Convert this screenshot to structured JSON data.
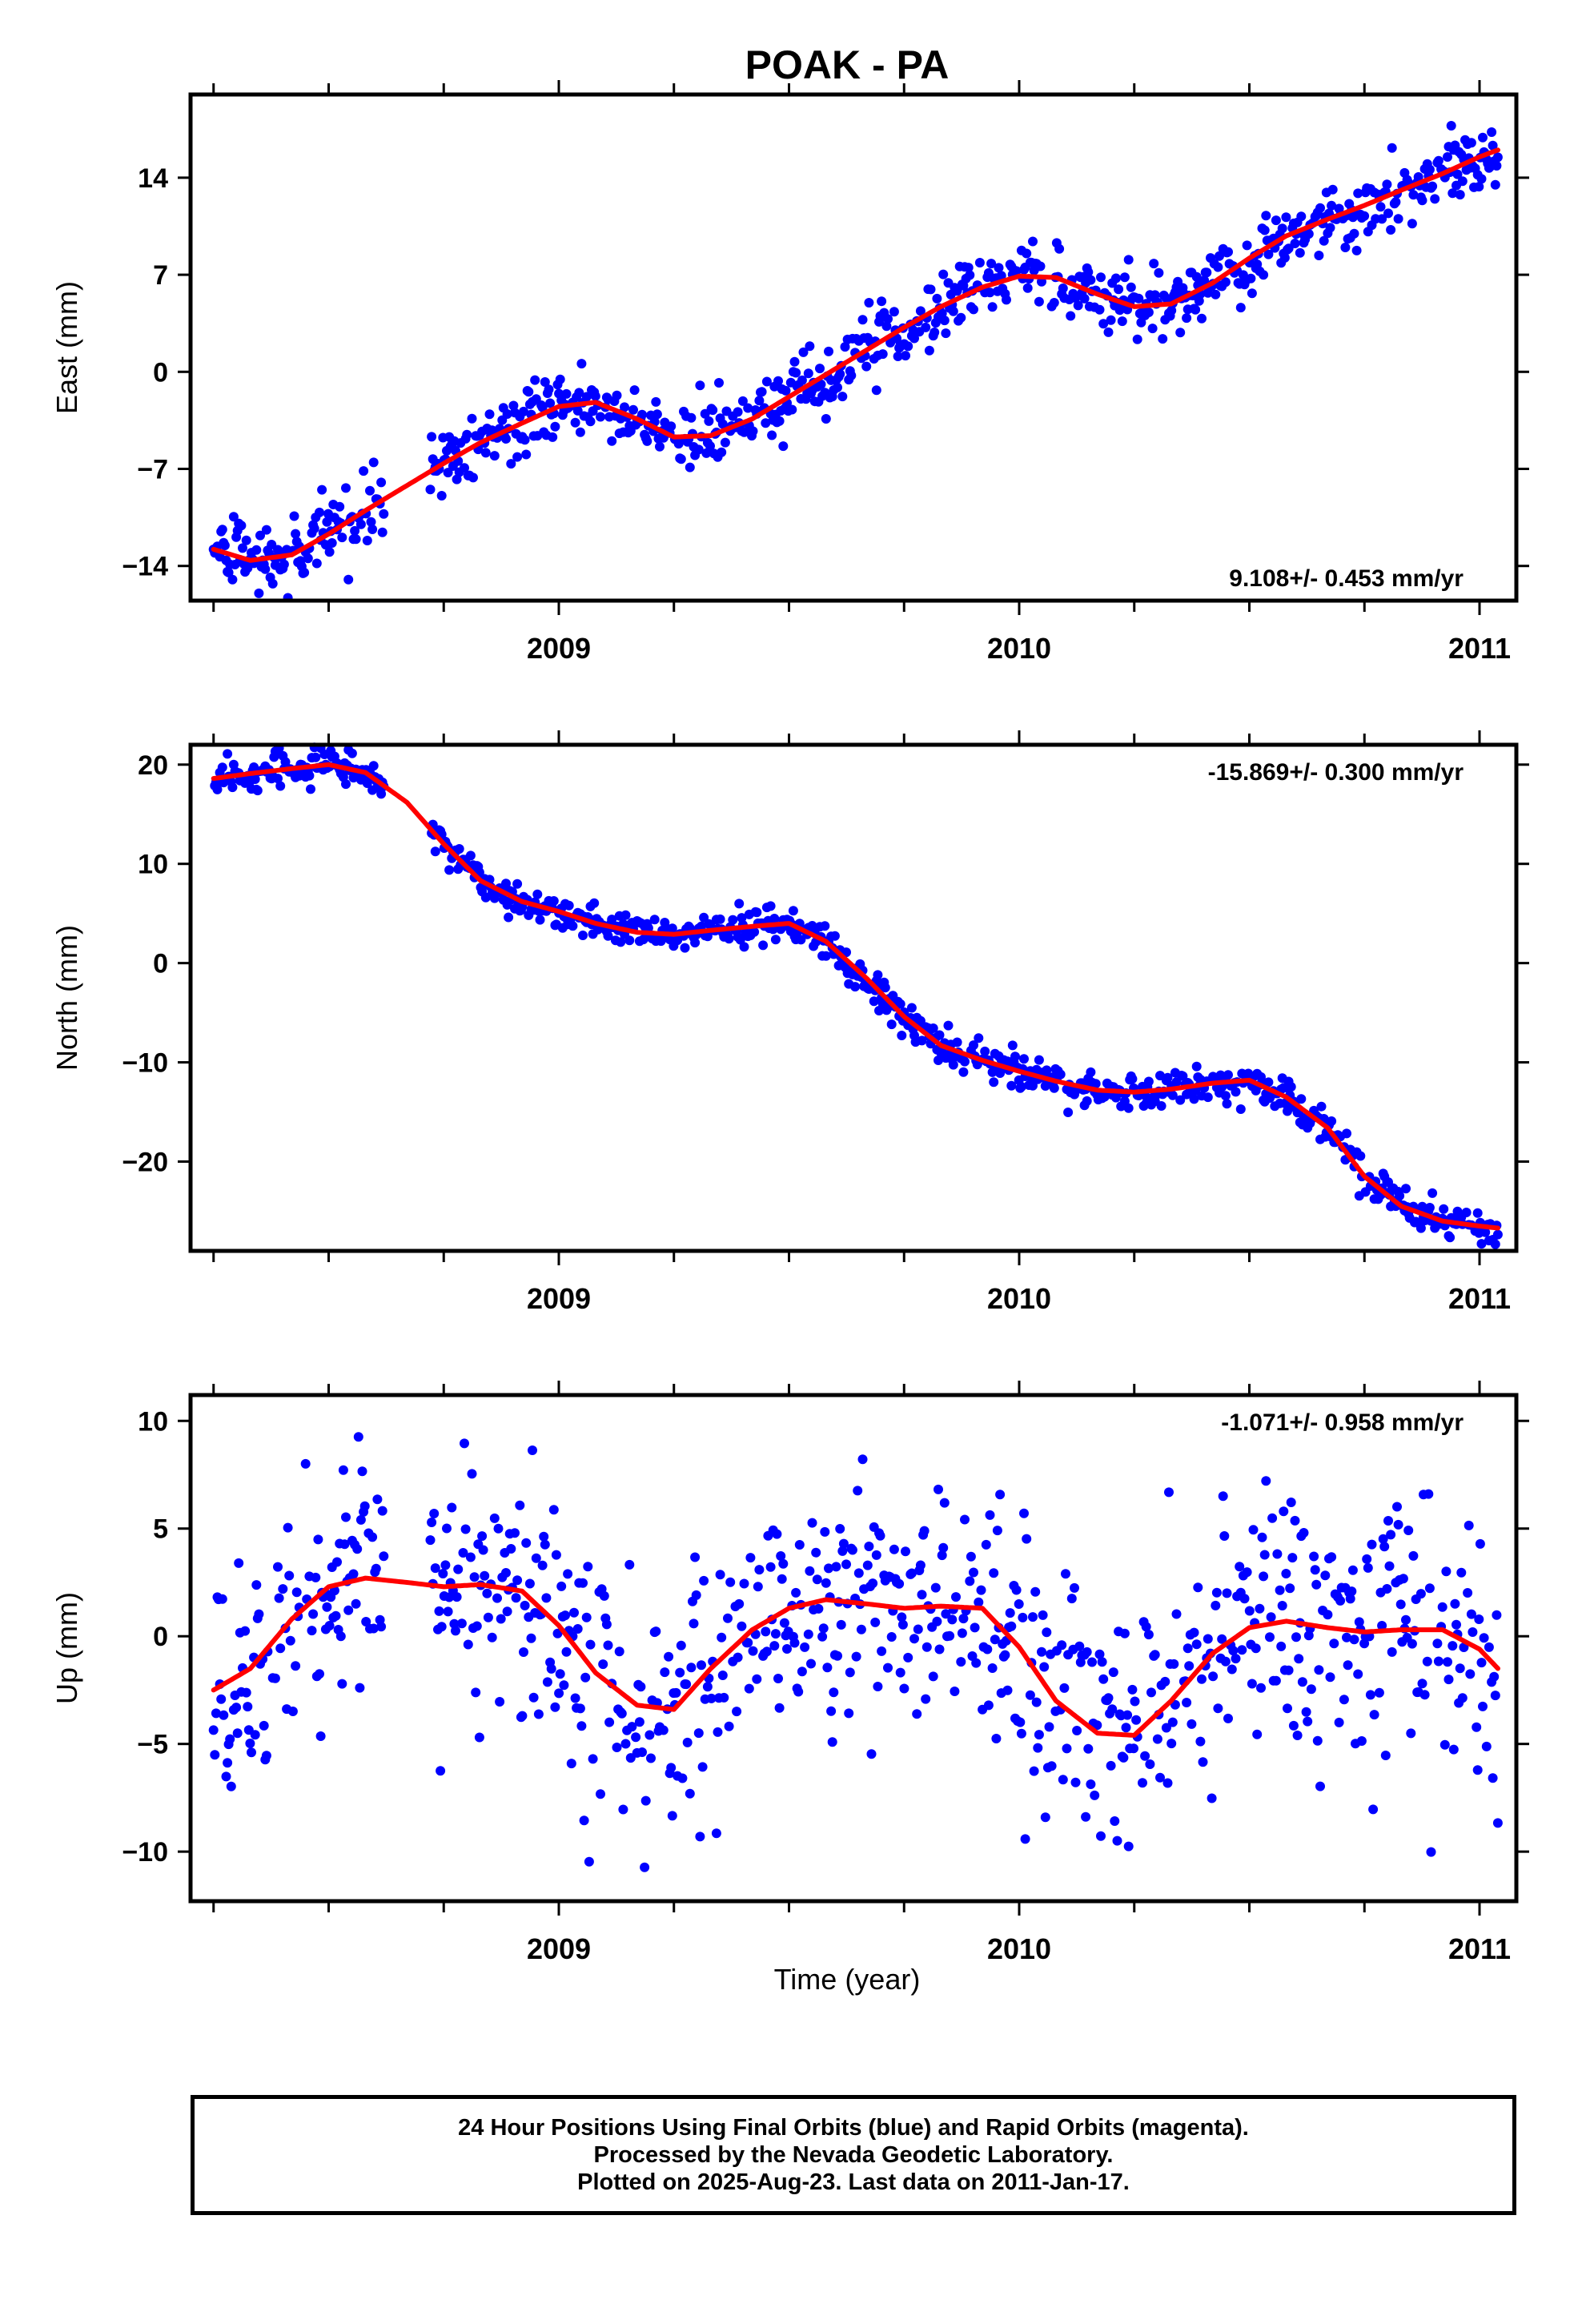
{
  "title": "POAK - PA",
  "xlabel": "Time (year)",
  "x_ticks": [
    "2009",
    "2010",
    "2011"
  ],
  "colors": {
    "points": "#0000ff",
    "fit": "#ff0000",
    "frame": "#000000"
  },
  "footer": {
    "line1": "24 Hour Positions Using Final Orbits (blue) and Rapid Orbits (magenta).",
    "line2": "Processed by the Nevada Geodetic Laboratory.",
    "line3": "Plotted on 2025-Aug-23. Last data on 2011-Jan-17."
  },
  "chart_data": [
    {
      "type": "scatter",
      "ylabel": "East (mm)",
      "rate": "9.108+/- 0.453 mm/yr",
      "rate_position": "bottom-right",
      "xlim": [
        2008.2,
        2011.08
      ],
      "ylim": [
        -16.5,
        20
      ],
      "y_ticks": [
        -14,
        -7,
        0,
        7,
        14
      ],
      "fit": {
        "name": "",
        "x": [
          2008.25,
          2008.33,
          2008.42,
          2008.5,
          2008.58,
          2008.67,
          2008.75,
          2008.83,
          2008.92,
          2009.0,
          2009.08,
          2009.17,
          2009.25,
          2009.33,
          2009.42,
          2009.5,
          2009.58,
          2009.67,
          2009.75,
          2009.83,
          2009.92,
          2010.0,
          2010.08,
          2010.17,
          2010.25,
          2010.33,
          2010.42,
          2010.5,
          2010.58,
          2010.67,
          2010.75,
          2010.83,
          2010.92,
          2011.0,
          2011.04
        ],
        "y": [
          -12.8,
          -13.6,
          -13.2,
          -11.7,
          -10.0,
          -8.2,
          -6.6,
          -5.1,
          -3.7,
          -2.5,
          -2.2,
          -3.4,
          -4.7,
          -4.6,
          -3.4,
          -1.8,
          -0.2,
          1.6,
          3.2,
          4.7,
          6.1,
          6.9,
          6.8,
          5.6,
          4.7,
          4.9,
          6.4,
          8.2,
          9.8,
          11.0,
          12.0,
          13.1,
          14.3,
          15.5,
          16.0
        ]
      },
      "points": {
        "name": "",
        "jitter": 1.2,
        "gaps": [
          [
            2008.62,
            2008.72
          ],
          [
            2010.05,
            2010.07
          ]
        ]
      }
    },
    {
      "type": "scatter",
      "ylabel": "North (mm)",
      "rate": "-15.869+/- 0.300 mm/yr",
      "rate_position": "top-right",
      "xlim": [
        2008.2,
        2011.08
      ],
      "ylim": [
        -29,
        22
      ],
      "y_ticks": [
        -20,
        -10,
        0,
        10,
        20
      ],
      "fit": {
        "name": "",
        "x": [
          2008.25,
          2008.33,
          2008.42,
          2008.5,
          2008.58,
          2008.67,
          2008.75,
          2008.83,
          2008.92,
          2009.0,
          2009.08,
          2009.17,
          2009.25,
          2009.33,
          2009.42,
          2009.5,
          2009.58,
          2009.67,
          2009.75,
          2009.83,
          2009.92,
          2010.0,
          2010.08,
          2010.17,
          2010.25,
          2010.33,
          2010.42,
          2010.5,
          2010.58,
          2010.67,
          2010.75,
          2010.83,
          2010.92,
          2011.0,
          2011.04
        ],
        "y": [
          18.6,
          19.1,
          19.6,
          20.0,
          19.2,
          16.2,
          12.0,
          8.3,
          6.2,
          5.2,
          4.0,
          3.1,
          2.9,
          3.3,
          3.7,
          4.0,
          2.2,
          -1.6,
          -5.4,
          -8.3,
          -9.8,
          -10.9,
          -11.9,
          -12.8,
          -13.0,
          -12.7,
          -12.1,
          -11.8,
          -13.5,
          -16.6,
          -21.5,
          -24.5,
          -26.0,
          -26.5,
          -26.7
        ]
      },
      "points": {
        "name": "",
        "jitter": 0.9,
        "gaps": [
          [
            2008.62,
            2008.72
          ]
        ]
      }
    },
    {
      "type": "scatter",
      "ylabel": "Up (mm)",
      "rate": "-1.071+/- 0.958 mm/yr",
      "rate_position": "top-right",
      "xlim": [
        2008.2,
        2011.08
      ],
      "ylim": [
        -12.3,
        11.2
      ],
      "y_ticks": [
        -10,
        -5,
        0,
        5,
        10
      ],
      "fit": {
        "name": "",
        "x": [
          2008.25,
          2008.33,
          2008.42,
          2008.5,
          2008.58,
          2008.67,
          2008.75,
          2008.83,
          2008.92,
          2009.0,
          2009.08,
          2009.17,
          2009.25,
          2009.33,
          2009.42,
          2009.5,
          2009.58,
          2009.67,
          2009.75,
          2009.83,
          2009.92,
          2010.0,
          2010.08,
          2010.17,
          2010.25,
          2010.33,
          2010.42,
          2010.5,
          2010.58,
          2010.67,
          2010.75,
          2010.83,
          2010.92,
          2011.0,
          2011.04
        ],
        "y": [
          -2.5,
          -1.5,
          0.8,
          2.3,
          2.7,
          2.5,
          2.3,
          2.4,
          2.1,
          0.5,
          -1.7,
          -3.2,
          -3.4,
          -1.5,
          0.3,
          1.3,
          1.7,
          1.5,
          1.3,
          1.4,
          1.3,
          -0.5,
          -3.0,
          -4.5,
          -4.6,
          -3.0,
          -0.8,
          0.4,
          0.7,
          0.4,
          0.2,
          0.3,
          0.3,
          -0.6,
          -1.5
        ]
      },
      "points": {
        "name": "",
        "jitter": 3.0,
        "gaps": [
          [
            2008.62,
            2008.72
          ]
        ]
      }
    }
  ]
}
